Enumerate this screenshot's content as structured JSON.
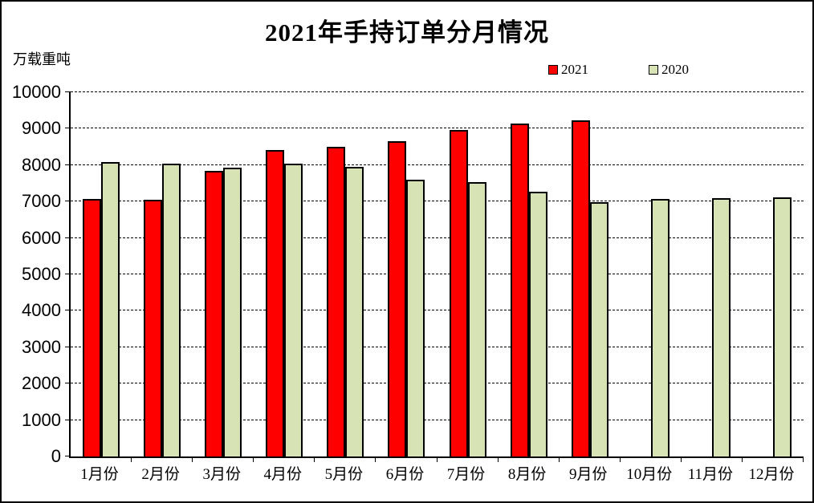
{
  "window": {
    "background": "#FFFFFF",
    "border_color": "#000000"
  },
  "title": "2021年手持订单分月情况",
  "y_axis_unit_label": "万载重吨",
  "legend": {
    "items": [
      {
        "label": "2021",
        "color": "#FF0000"
      },
      {
        "label": "2020",
        "color": "#D7E2B5"
      }
    ]
  },
  "chart_data": {
    "type": "bar",
    "title": "2021年手持订单分月情况",
    "ylabel": "万载重吨",
    "xlabel": "",
    "ylim": [
      0,
      10000
    ],
    "ytick_step": 1000,
    "yticks": [
      0,
      1000,
      2000,
      3000,
      4000,
      5000,
      6000,
      7000,
      8000,
      9000,
      10000
    ],
    "grid": "horizontal-dashed",
    "legend_position": "top-right",
    "categories": [
      "1月份",
      "2月份",
      "3月份",
      "4月份",
      "5月份",
      "6月份",
      "7月份",
      "8月份",
      "9月份",
      "10月份",
      "11月份",
      "12月份"
    ],
    "series": [
      {
        "name": "2021",
        "color": "#FF0000",
        "values": [
          7080,
          7040,
          7840,
          8410,
          8500,
          8650,
          8970,
          9140,
          9240,
          null,
          null,
          null
        ]
      },
      {
        "name": "2020",
        "color": "#D7E2B5",
        "values": [
          8090,
          8030,
          7930,
          8030,
          7960,
          7610,
          7540,
          7260,
          6980,
          7070,
          7090,
          7110
        ]
      }
    ]
  }
}
